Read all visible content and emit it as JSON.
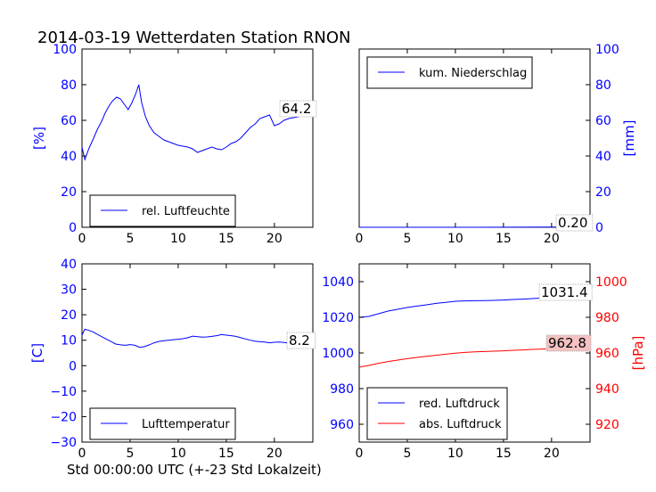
{
  "title": "2014-03-19 Wetterdaten Station RNON",
  "xlabel": "Std 00:00:00 UTC (+-23 Std Lokalzeit)",
  "chart_data": [
    {
      "type": "line",
      "panel": "top-left",
      "ylabel": "[%]",
      "ylim": [
        0,
        100
      ],
      "yticks": [
        "0",
        "20",
        "40",
        "60",
        "80",
        "100"
      ],
      "xlim": [
        0,
        24
      ],
      "xticks": [
        "0",
        "5",
        "10",
        "15",
        "20"
      ],
      "legend": "rel. Luftfeuchte",
      "legend_placement": "lower-left",
      "color": "#0000ff",
      "last_value_label": "64.2",
      "series": [
        {
          "name": "rel. Luftfeuchte",
          "x": [
            0,
            0.3,
            0.7,
            1.2,
            1.6,
            2.0,
            2.4,
            2.8,
            3.2,
            3.6,
            4.0,
            4.4,
            4.8,
            5.2,
            5.6,
            5.9,
            6.2,
            6.6,
            7.0,
            7.5,
            8.0,
            8.5,
            9.0,
            9.5,
            10.0,
            10.5,
            11.0,
            11.5,
            12.0,
            12.5,
            13.0,
            13.5,
            14.0,
            14.5,
            15.0,
            15.5,
            16.0,
            16.5,
            17.0,
            17.5,
            18.0,
            18.5,
            19.0,
            19.5,
            20.0,
            20.5,
            21.0,
            21.5,
            22.0,
            22.5,
            23.0,
            23.5,
            24.0
          ],
          "y": [
            45,
            38,
            44,
            50,
            55,
            59,
            64,
            68,
            71,
            73,
            72,
            69,
            66,
            70,
            75,
            80,
            70,
            62,
            57,
            53,
            51,
            49,
            48,
            47,
            46,
            45.5,
            45,
            44,
            42,
            43,
            44,
            45,
            44,
            43.5,
            45,
            47,
            48,
            50,
            53,
            56,
            58,
            61,
            62,
            63,
            57,
            58,
            60,
            61,
            61.5,
            62,
            63,
            63.5,
            64.2
          ]
        }
      ]
    },
    {
      "type": "line",
      "panel": "top-right",
      "ylabel": "[mm]",
      "ylim": [
        0,
        100
      ],
      "yticks": [
        "0",
        "20",
        "40",
        "60",
        "80",
        "100"
      ],
      "xlim": [
        0,
        24
      ],
      "xticks": [
        "0",
        "5",
        "10",
        "15",
        "20"
      ],
      "legend": "kum. Niederschlag",
      "legend_placement": "top-left",
      "color": "#0000ff",
      "last_value_label": "0.20",
      "series": [
        {
          "name": "kum. Niederschlag",
          "x": [
            0,
            12,
            20,
            24
          ],
          "y": [
            0,
            0,
            0.1,
            0.2
          ]
        }
      ]
    },
    {
      "type": "line",
      "panel": "bottom-left",
      "ylabel": "[C]",
      "ylim": [
        -30,
        40
      ],
      "yticks": [
        "−30",
        "−20",
        "−10",
        "0",
        "10",
        "20",
        "30",
        "40"
      ],
      "xlim": [
        0,
        24
      ],
      "xticks": [
        "0",
        "5",
        "10",
        "15",
        "20"
      ],
      "legend": "Lufttemperatur",
      "legend_placement": "lower-left",
      "color": "#0000ff",
      "last_value_label": "8.2",
      "series": [
        {
          "name": "Lufttemperatur",
          "x": [
            0,
            0.3,
            0.6,
            1.0,
            1.5,
            2.0,
            2.5,
            3.0,
            3.5,
            4.0,
            4.5,
            5.0,
            5.5,
            6.0,
            6.5,
            7.0,
            7.5,
            8.0,
            8.5,
            9.0,
            9.5,
            10.0,
            10.5,
            11.0,
            11.5,
            12.0,
            12.5,
            13.0,
            13.5,
            14.0,
            14.5,
            15.0,
            15.5,
            16.0,
            16.5,
            17.0,
            17.5,
            18.0,
            18.5,
            19.0,
            19.5,
            20.0,
            20.5,
            21.0,
            21.5,
            22.0,
            22.5,
            23.0,
            23.5,
            24.0
          ],
          "y": [
            12,
            14.3,
            14,
            13.5,
            12.5,
            11.5,
            10.5,
            9.5,
            8.5,
            8.2,
            8.0,
            8.3,
            8.0,
            7.2,
            7.5,
            8.2,
            9.0,
            9.5,
            9.8,
            10.0,
            10.2,
            10.4,
            10.6,
            11.0,
            11.6,
            11.4,
            11.2,
            11.3,
            11.5,
            11.8,
            12.2,
            12.0,
            11.8,
            11.5,
            11.0,
            10.5,
            10.0,
            9.6,
            9.4,
            9.3,
            9.0,
            9.2,
            9.3,
            9.1,
            8.9,
            8.8,
            8.6,
            8.5,
            8.3,
            8.2
          ]
        }
      ]
    },
    {
      "type": "line",
      "panel": "bottom-right",
      "ylabel": "[hPa]",
      "ylim_left": [
        950,
        1050
      ],
      "yticks_left": [
        "960",
        "980",
        "1000",
        "1020",
        "1040"
      ],
      "ylim_right": [
        910,
        1010
      ],
      "yticks_right": [
        "920",
        "940",
        "960",
        "980",
        "1000"
      ],
      "xlim": [
        0,
        24
      ],
      "xticks": [
        "0",
        "5",
        "10",
        "15",
        "20"
      ],
      "legend_placement": "lower-left",
      "last_value_labels": [
        "1031.4",
        "962.8"
      ],
      "series": [
        {
          "name": "red. Luftdruck",
          "color": "#0000ff",
          "axis": "left",
          "x": [
            0,
            1,
            2,
            3,
            4,
            5,
            6,
            7,
            8,
            9,
            10,
            11,
            12,
            13,
            14,
            15,
            16,
            17,
            18,
            19,
            20,
            21,
            22,
            23,
            24
          ],
          "y": [
            1020,
            1020.5,
            1022,
            1023.5,
            1024.5,
            1025.5,
            1026.3,
            1027,
            1027.8,
            1028.4,
            1029,
            1029.2,
            1029.3,
            1029.4,
            1029.5,
            1029.7,
            1030,
            1030.2,
            1030.5,
            1030.8,
            1031,
            1031.2,
            1031.3,
            1031.4,
            1031.4
          ]
        },
        {
          "name": "abs. Luftdruck",
          "color": "#ff0000",
          "axis": "right",
          "x": [
            0,
            1,
            2,
            3,
            4,
            5,
            6,
            7,
            8,
            9,
            10,
            11,
            12,
            13,
            14,
            15,
            16,
            17,
            18,
            19,
            20,
            21,
            22,
            23,
            24
          ],
          "y": [
            952,
            953,
            954.2,
            955.2,
            956,
            956.8,
            957.5,
            958.1,
            958.7,
            959.3,
            959.9,
            960.3,
            960.6,
            960.8,
            961,
            961.2,
            961.5,
            961.7,
            962,
            962.2,
            962.4,
            962.6,
            962.7,
            962.8,
            962.8
          ]
        }
      ]
    }
  ]
}
